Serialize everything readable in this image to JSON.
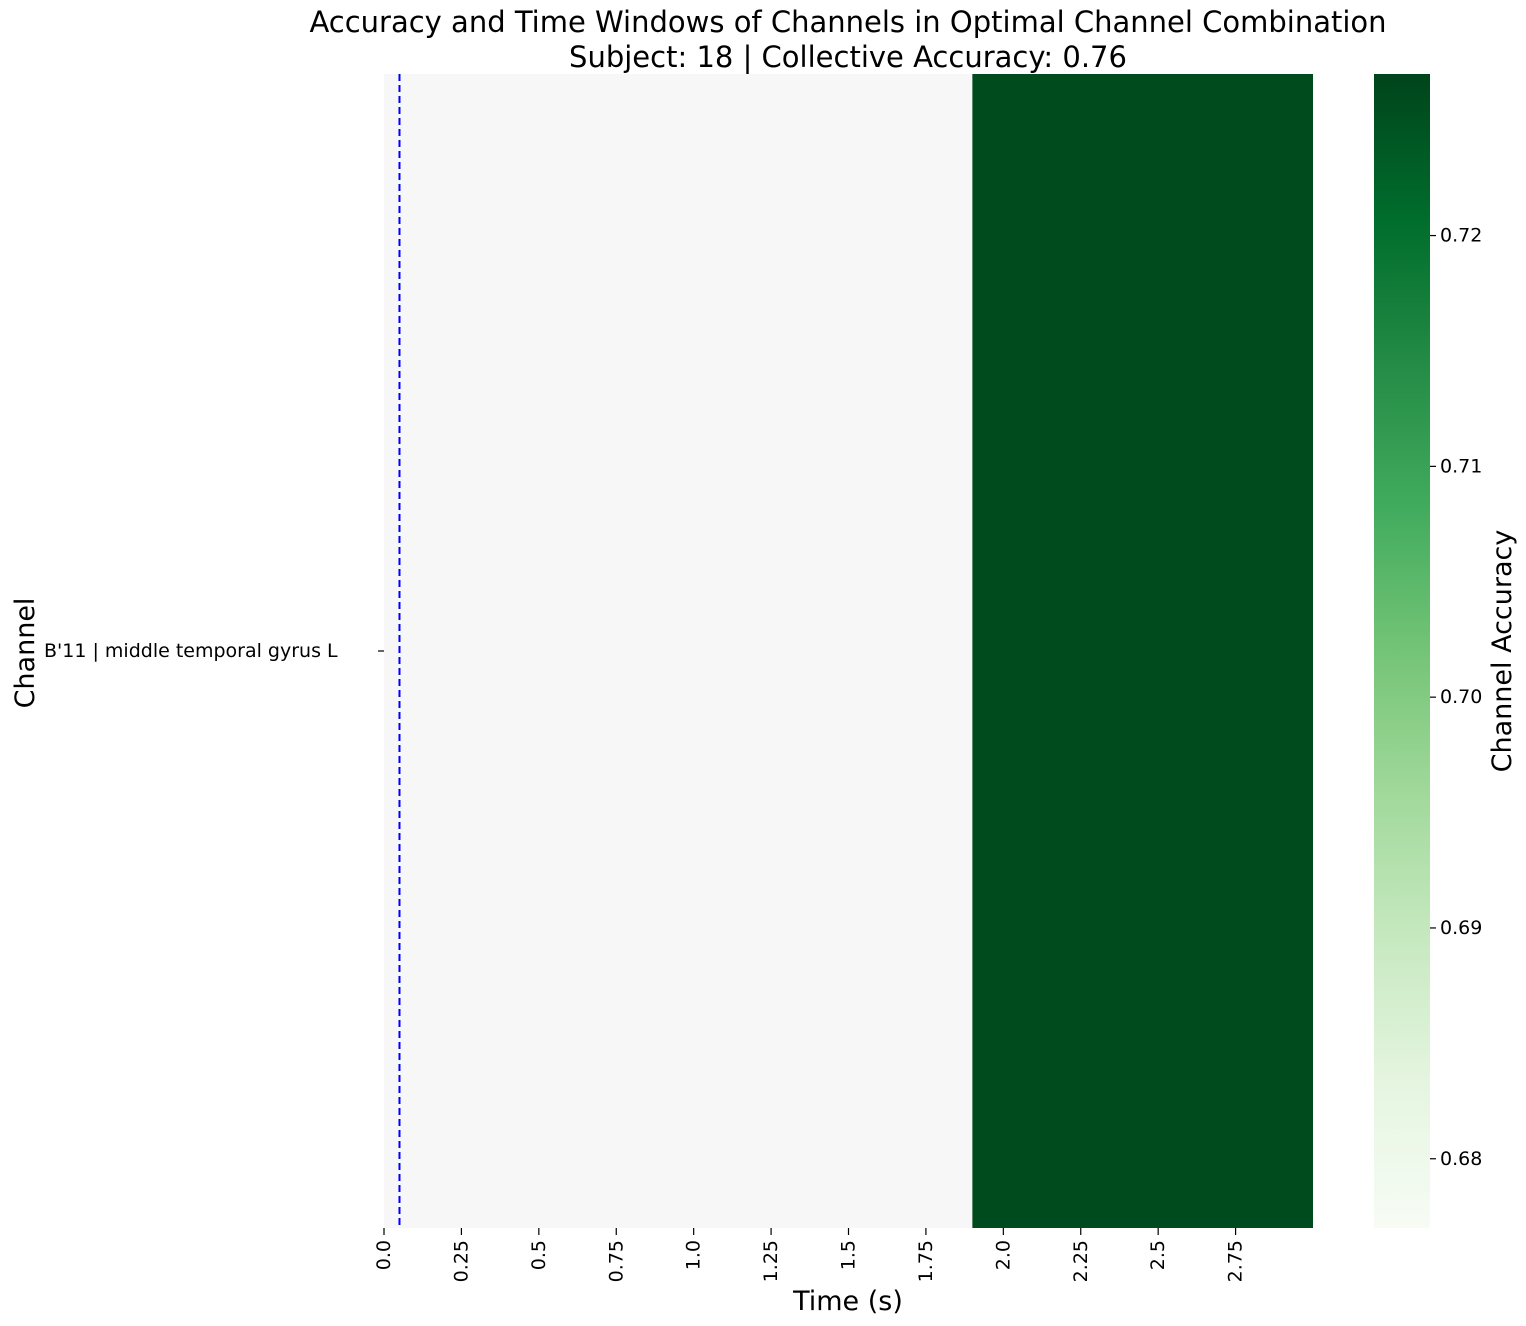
{
  "chart_data": {
    "type": "heatmap",
    "title": "Accuracy and Time Windows of Channels in Optimal Channel Combination",
    "subtitle": "Subject: 18 | Collective Accuracy: 0.76",
    "xlabel": "Time (s)",
    "ylabel": "Channel",
    "x_range": [
      0,
      3.0
    ],
    "x_ticks": [
      "0.0",
      "0.25",
      "0.5",
      "0.75",
      "1.0",
      "1.25",
      "1.5",
      "1.75",
      "2.0",
      "2.25",
      "2.5",
      "2.75"
    ],
    "x_tick_values": [
      0,
      0.25,
      0.5,
      0.75,
      1.0,
      1.25,
      1.5,
      1.75,
      2.0,
      2.25,
      2.5,
      2.75
    ],
    "channels": [
      "B'11 | middle temporal gyrus L"
    ],
    "windows": [
      {
        "channel": "B'11 | middle temporal gyrus L",
        "start": 1.9,
        "end": 3.0,
        "accuracy": 0.726
      }
    ],
    "background_color": "#f7f7f7",
    "marker_line": {
      "x": 0.05,
      "style": "dashed",
      "color": "#0000ff"
    },
    "colorbar": {
      "label": "Channel Accuracy",
      "range": [
        0.677,
        0.727
      ],
      "ticks": [
        "0.68",
        "0.69",
        "0.70",
        "0.71",
        "0.72"
      ],
      "tick_values": [
        0.68,
        0.69,
        0.7,
        0.71,
        0.72
      ],
      "colormap": "Greens",
      "colors": [
        "#f7fcf5",
        "#e5f5e0",
        "#c7e9c0",
        "#a1d99b",
        "#74c476",
        "#41ab5d",
        "#238b45",
        "#006d2c",
        "#00441b"
      ]
    }
  }
}
